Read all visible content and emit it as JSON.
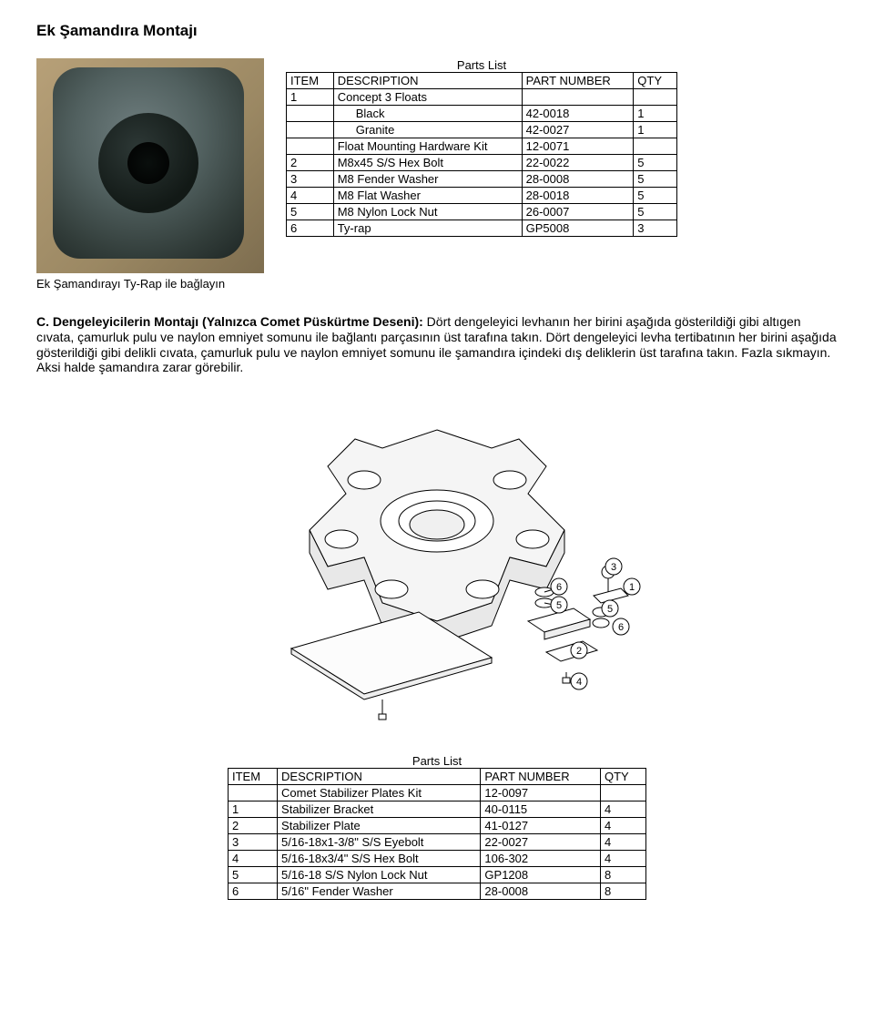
{
  "page": {
    "title": "Ek Şamandıra Montajı"
  },
  "photo": {
    "caption": "Ek Şamandırayı Ty-Rap ile bağlayın"
  },
  "table1": {
    "caption": "Parts List",
    "headers": {
      "item": "ITEM",
      "desc": "DESCRIPTION",
      "pn": "PART NUMBER",
      "qty": "QTY"
    },
    "rows": [
      {
        "item": "1",
        "desc": "Concept 3 Floats",
        "pn": "",
        "qty": ""
      },
      {
        "item": "",
        "desc": "Black",
        "pn": "42-0018",
        "qty": "1",
        "indent": true
      },
      {
        "item": "",
        "desc": "Granite",
        "pn": "42-0027",
        "qty": "1",
        "indent": true
      },
      {
        "item": "",
        "desc": "Float Mounting Hardware Kit",
        "pn": "12-0071",
        "qty": ""
      },
      {
        "item": "2",
        "desc": "M8x45 S/S Hex Bolt",
        "pn": "22-0022",
        "qty": "5"
      },
      {
        "item": "3",
        "desc": "M8 Fender Washer",
        "pn": "28-0008",
        "qty": "5"
      },
      {
        "item": "4",
        "desc": "M8 Flat Washer",
        "pn": "28-0018",
        "qty": "5"
      },
      {
        "item": "5",
        "desc": "M8 Nylon Lock Nut",
        "pn": "26-0007",
        "qty": "5"
      },
      {
        "item": "6",
        "desc": "Ty-rap",
        "pn": "GP5008",
        "qty": "3"
      }
    ]
  },
  "sectionC": {
    "heading": "C. Dengeleyicilerin Montajı (Yalnızca Comet Püskürtme Deseni):",
    "body": "Dört dengeleyici levhanın her birini aşağıda gösterildiği gibi altıgen cıvata, çamurluk pulu ve naylon emniyet somunu ile bağlantı parçasının üst tarafına takın. Dört dengeleyici levha tertibatının her birini aşağıda gösterildiği gibi delikli cıvata, çamurluk pulu ve naylon emniyet somunu ile şamandıra içindeki dış deliklerin üst tarafına takın. Fazla sıkmayın. Aksi halde şamandıra zarar görebilir."
  },
  "diagram": {
    "stroke": "#000000",
    "fill_body": "#ffffff",
    "callouts": [
      "1",
      "2",
      "3",
      "4",
      "5",
      "6"
    ]
  },
  "table2": {
    "caption": "Parts List",
    "headers": {
      "item": "ITEM",
      "desc": "DESCRIPTION",
      "pn": "PART NUMBER",
      "qty": "QTY"
    },
    "rows": [
      {
        "item": "",
        "desc": "Comet Stabilizer Plates Kit",
        "pn": "12-0097",
        "qty": ""
      },
      {
        "item": "1",
        "desc": "Stabilizer Bracket",
        "pn": "40-0115",
        "qty": "4"
      },
      {
        "item": "2",
        "desc": "Stabilizer Plate",
        "pn": "41-0127",
        "qty": "4"
      },
      {
        "item": "3",
        "desc": "5/16-18x1-3/8\" S/S Eyebolt",
        "pn": "22-0027",
        "qty": "4"
      },
      {
        "item": "4",
        "desc": "5/16-18x3/4\" S/S Hex Bolt",
        "pn": "106-302",
        "qty": "4"
      },
      {
        "item": "5",
        "desc": "5/16-18 S/S Nylon Lock Nut",
        "pn": "GP1208",
        "qty": "8"
      },
      {
        "item": "6",
        "desc": "5/16\" Fender Washer",
        "pn": "28-0008",
        "qty": "8"
      }
    ]
  }
}
